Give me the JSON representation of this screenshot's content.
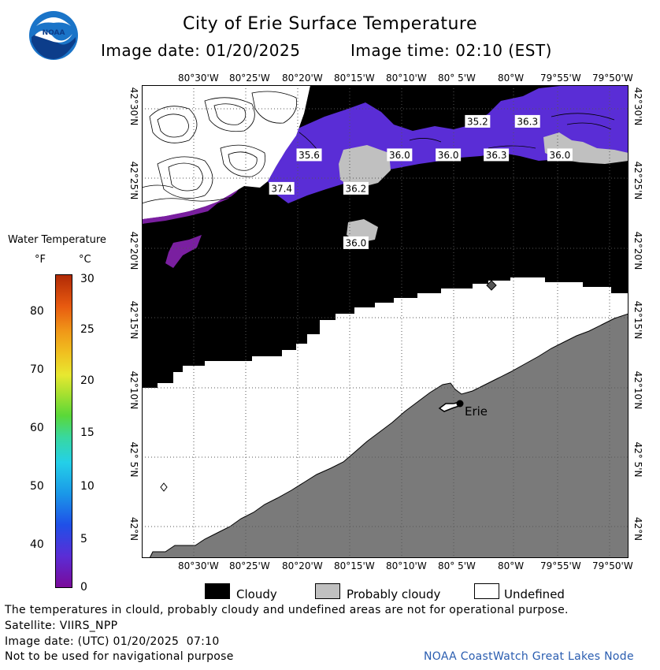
{
  "header": {
    "title": "City of Erie Surface Temperature",
    "date_label": "Image date: 01/20/2025",
    "time_label": "Image time: 02:10 (EST)",
    "logo_text": "NOAA"
  },
  "axes": {
    "lon_labels": [
      "80°30'W",
      "80°25'W",
      "80°20'W",
      "80°15'W",
      "80°10'W",
      "80° 5'W",
      "80°W",
      "79°55'W",
      "79°50'W"
    ],
    "lat_labels": [
      "42°30'N",
      "42°25'N",
      "42°20'N",
      "42°15'N",
      "42°10'N",
      "42° 5'N",
      "42°N"
    ]
  },
  "map": {
    "sst_labels": [
      {
        "value": "35.2",
        "lon": -80.045,
        "lat": 42.485
      },
      {
        "value": "36.3",
        "lon": -79.965,
        "lat": 42.485
      },
      {
        "value": "35.6",
        "lon": -80.315,
        "lat": 42.445
      },
      {
        "value": "36.0",
        "lon": -80.17,
        "lat": 42.445
      },
      {
        "value": "36.0",
        "lon": -80.092,
        "lat": 42.445
      },
      {
        "value": "36.3",
        "lon": -80.015,
        "lat": 42.445
      },
      {
        "value": "36.0",
        "lon": -79.913,
        "lat": 42.445
      },
      {
        "value": "37.4",
        "lon": -80.359,
        "lat": 42.405
      },
      {
        "value": "36.2",
        "lon": -80.24,
        "lat": 42.405
      },
      {
        "value": "36.0",
        "lon": -80.24,
        "lat": 42.34
      }
    ],
    "city_label": "Erie",
    "colors": {
      "cloudy": "#000000",
      "probably_cloudy": "#c0c0c0",
      "undefined": "#ffffff",
      "land": "#7a7a7a",
      "water_cold": "#5a2dd6",
      "water_purple": "#7a1fa0"
    }
  },
  "legend": {
    "title": "Water Temperature",
    "unit_f": "°F",
    "unit_c": "°C",
    "f_ticks": [
      "80",
      "70",
      "60",
      "50",
      "40"
    ],
    "c_ticks": [
      "30",
      "25",
      "20",
      "15",
      "10",
      "5",
      "0"
    ],
    "keys": [
      {
        "label": "Cloudy",
        "color": "#000000"
      },
      {
        "label": "Probably cloudy",
        "color": "#c0c0c0"
      },
      {
        "label": "Undefined",
        "color": "#ffffff"
      }
    ]
  },
  "footer": {
    "disclaimer": "The temperatures in clould, probably cloudy and undefined areas are not for operational purpose.",
    "satellite": "Satellite: VIIRS_NPP",
    "utc_date": "Image date: (UTC) 01/20/2025  07:10",
    "nav_warning": "Not to be used for navigational purpose",
    "credit": "NOAA CoastWatch Great Lakes Node"
  }
}
